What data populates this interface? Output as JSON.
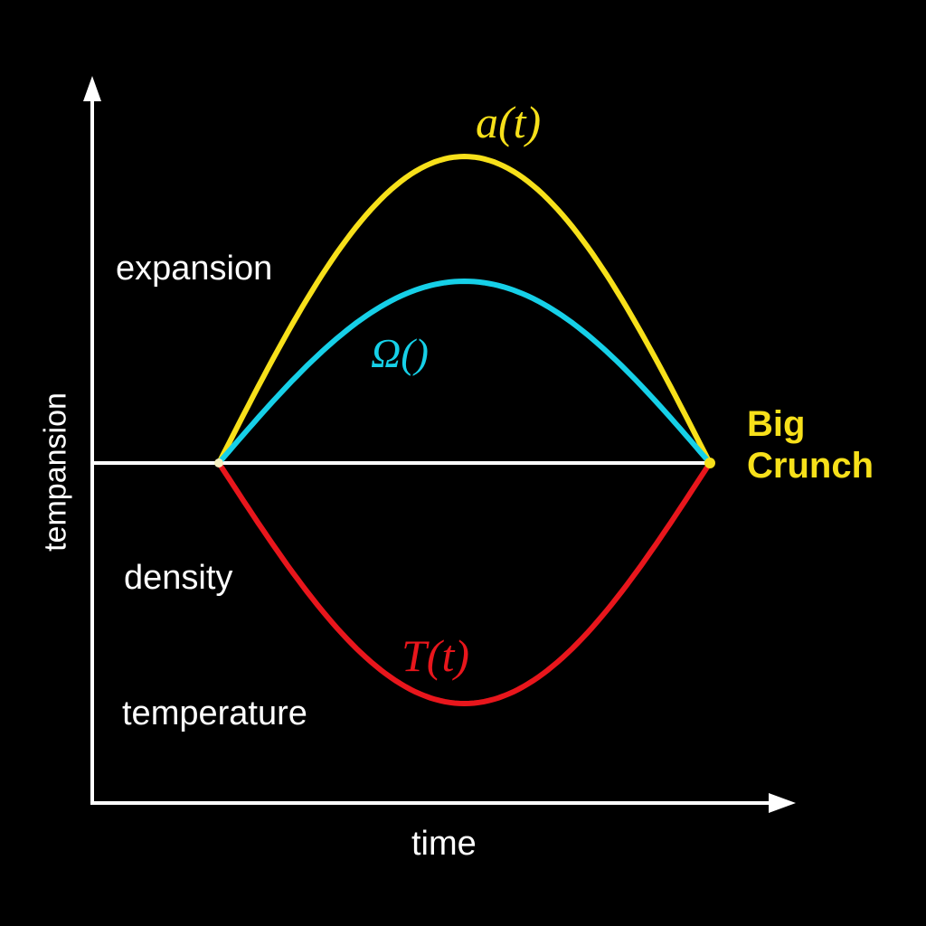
{
  "axes": {
    "y_label": "tempansion",
    "x_label": "time"
  },
  "side_labels": {
    "expansion": "expansion",
    "density": "density",
    "temperature": "temperature"
  },
  "curves": [
    {
      "id": "scale-factor",
      "label": "a(t)",
      "color": "#f7e01a",
      "shape": "rise-then-fall"
    },
    {
      "id": "omega",
      "label": "Ω()",
      "color": "#16d0e8",
      "shape": "rise-then-fall"
    },
    {
      "id": "temperature",
      "label": "T(t)",
      "color": "#e8161c",
      "shape": "fall-then-rise"
    }
  ],
  "end_label": {
    "line1": "Big",
    "line2": "Crunch",
    "color": "#f7e01a"
  },
  "colors": {
    "background": "#000000",
    "axes": "#ffffff"
  }
}
